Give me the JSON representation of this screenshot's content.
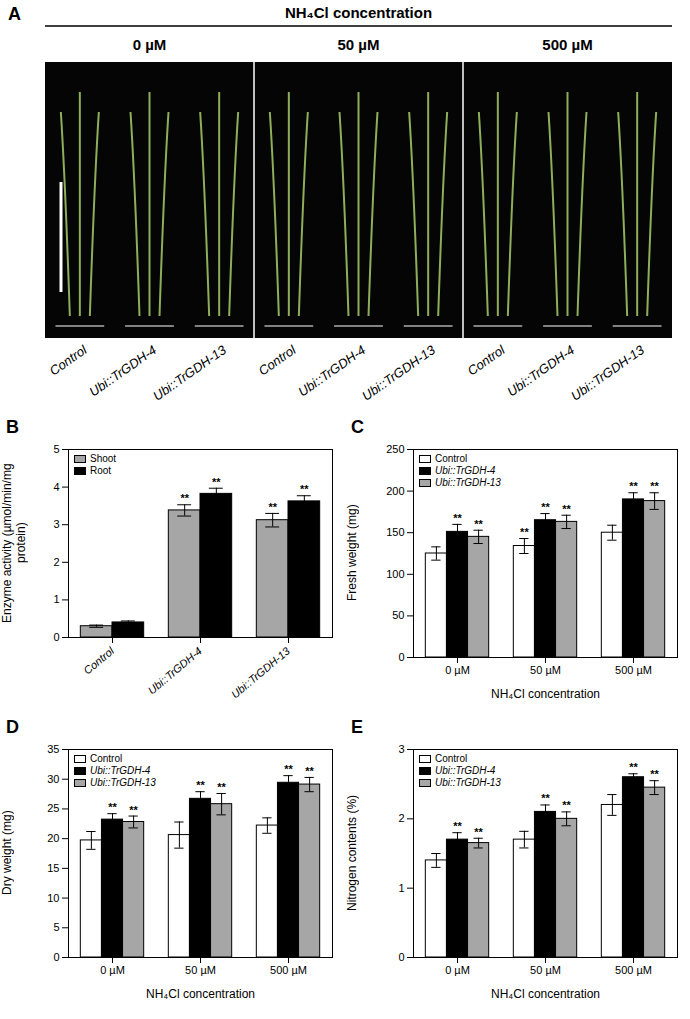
{
  "photo_panel": {
    "panel_label": "A",
    "title": "NH₄Cl concentration",
    "columns": [
      {
        "heading": "0 µM",
        "labels": [
          "Control",
          "Ubi::TrGDH-4",
          "Ubi::TrGDH-13"
        ]
      },
      {
        "heading": "50 µM",
        "labels": [
          "Control",
          "Ubi::TrGDH-4",
          "Ubi::TrGDH-13"
        ]
      },
      {
        "heading": "500 µM",
        "labels": [
          "Control",
          "Ubi::TrGDH-4",
          "Ubi::TrGDH-13"
        ]
      }
    ]
  },
  "chart_data": [
    {
      "type": "bar",
      "panel_label": "B",
      "ylabel": "Enzyme activity (µmol/min/mg protein)",
      "categories": [
        "Control",
        "Ubi::TrGDH-4",
        "Ubi::TrGDH-13"
      ],
      "series": [
        {
          "name": "Shoot",
          "color": "#a6a6a6",
          "values": [
            0.3,
            3.38,
            3.12
          ],
          "errors": [
            0.03,
            0.15,
            0.18
          ],
          "significance": [
            null,
            "**",
            "**"
          ]
        },
        {
          "name": "Root",
          "color": "#000000",
          "values": [
            0.4,
            3.82,
            3.62
          ],
          "errors": [
            0.04,
            0.15,
            0.15
          ],
          "significance": [
            null,
            "**",
            "**"
          ]
        }
      ],
      "ylim": [
        0,
        5
      ],
      "yticks": [
        0,
        1,
        2,
        3,
        4,
        5
      ],
      "legend": "top-left"
    },
    {
      "type": "bar",
      "panel_label": "C",
      "ylabel": "Fresh weight (mg)",
      "xlabel": "NH₄Cl concentration",
      "categories": [
        "0 µM",
        "50 µM",
        "500 µM"
      ],
      "series": [
        {
          "name": "Control",
          "color": "#ffffff",
          "values": [
            125,
            134,
            150
          ],
          "errors": [
            8,
            9,
            9
          ],
          "significance": [
            null,
            "**",
            null
          ]
        },
        {
          "name": "Ubi::TrGDH-4",
          "color": "#000000",
          "values": [
            151,
            165,
            190
          ],
          "errors": [
            9,
            8,
            8
          ],
          "significance": [
            "**",
            "**",
            "**"
          ]
        },
        {
          "name": "Ubi::TrGDH-13",
          "color": "#a6a6a6",
          "values": [
            145,
            163,
            188
          ],
          "errors": [
            8,
            8,
            10
          ],
          "significance": [
            "**",
            "**",
            "**"
          ]
        }
      ],
      "ylim": [
        0,
        250
      ],
      "yticks": [
        0,
        50,
        100,
        150,
        200,
        250
      ],
      "legend": "top-left"
    },
    {
      "type": "bar",
      "panel_label": "D",
      "ylabel": "Dry weight (mg)",
      "xlabel": "NH₄Cl concentration",
      "categories": [
        "0 µM",
        "50 µM",
        "500 µM"
      ],
      "series": [
        {
          "name": "Control",
          "color": "#ffffff",
          "values": [
            19.7,
            20.6,
            22.2
          ],
          "errors": [
            1.5,
            2.2,
            1.3
          ],
          "significance": [
            null,
            null,
            null
          ]
        },
        {
          "name": "Ubi::TrGDH-4",
          "color": "#000000",
          "values": [
            23.2,
            26.7,
            29.4
          ],
          "errors": [
            1.0,
            1.2,
            1.2
          ],
          "significance": [
            "**",
            "**",
            "**"
          ]
        },
        {
          "name": "Ubi::TrGDH-13",
          "color": "#a6a6a6",
          "values": [
            22.8,
            25.8,
            29.1
          ],
          "errors": [
            1.0,
            1.8,
            1.2
          ],
          "significance": [
            "**",
            "**",
            "**"
          ]
        }
      ],
      "ylim": [
        0,
        35
      ],
      "yticks": [
        0,
        5,
        10,
        15,
        20,
        25,
        30,
        35
      ],
      "legend": "top-left"
    },
    {
      "type": "bar",
      "panel_label": "E",
      "ylabel": "Nitrogen contents (%)",
      "xlabel": "NH₄Cl concentration",
      "categories": [
        "0 µM",
        "50 µM",
        "500 µM"
      ],
      "series": [
        {
          "name": "Control",
          "color": "#ffffff",
          "values": [
            1.4,
            1.7,
            2.2
          ],
          "errors": [
            0.1,
            0.12,
            0.15
          ],
          "significance": [
            null,
            null,
            null
          ]
        },
        {
          "name": "Ubi::TrGDH-4",
          "color": "#000000",
          "values": [
            1.7,
            2.1,
            2.6
          ],
          "errors": [
            0.1,
            0.1,
            0.05
          ],
          "significance": [
            "**",
            "**",
            "**"
          ]
        },
        {
          "name": "Ubi::TrGDH-13",
          "color": "#a6a6a6",
          "values": [
            1.65,
            2.0,
            2.45
          ],
          "errors": [
            0.07,
            0.1,
            0.1
          ],
          "significance": [
            "**",
            "**",
            "**"
          ]
        }
      ],
      "ylim": [
        0,
        3
      ],
      "yticks": [
        0,
        1,
        2,
        3
      ],
      "legend": "top-left"
    }
  ]
}
